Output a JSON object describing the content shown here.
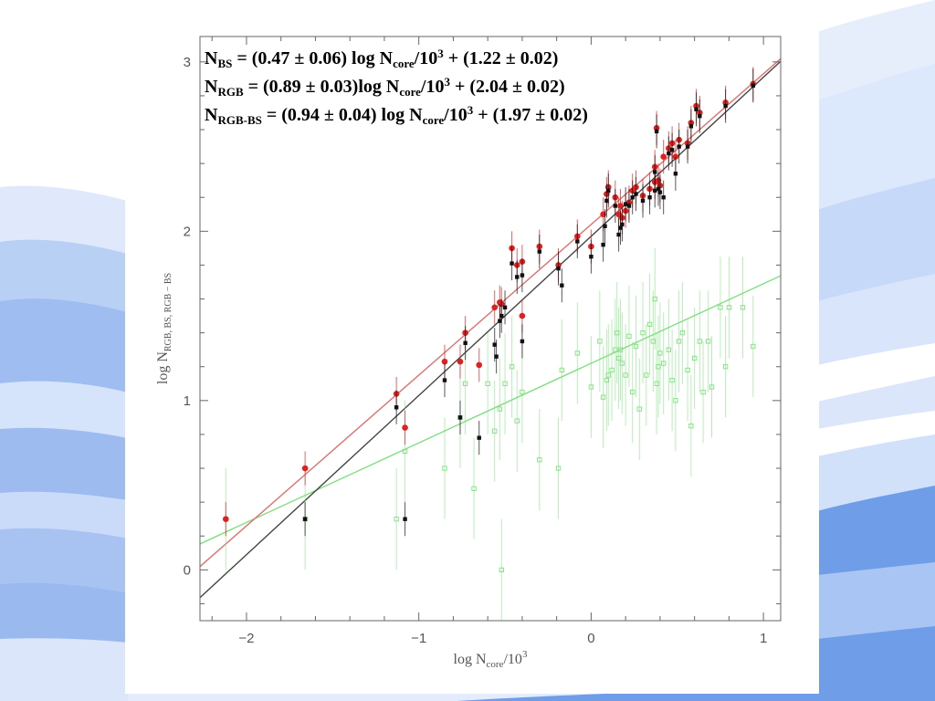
{
  "chart_data": {
    "type": "scatter",
    "xlabel": {
      "base": "log N",
      "sub": "core",
      "tail": "/10",
      "sup": "3"
    },
    "ylabel": {
      "base": "log N",
      "sub": "RGB, BS, RGB − BS"
    },
    "xlim": [
      -2.27,
      1.1
    ],
    "ylim": [
      -0.3,
      3.15
    ],
    "xticks": [
      -2,
      -1,
      0,
      1
    ],
    "xtick_labels": [
      "−2",
      "−1",
      "0",
      "1"
    ],
    "yticks": [
      0,
      1,
      2,
      3
    ],
    "ytick_labels": [
      "0",
      "1",
      "2",
      "3"
    ],
    "equations": [
      {
        "lhs": "N",
        "sub": "BS",
        "a": " = (0.47 ± 0.06) log N",
        "sub2": "core",
        "b": "/10",
        "sup": "3",
        "c": " + (1.22 ± 0.02)"
      },
      {
        "lhs": "N",
        "sub": "RGB",
        "a": " = (0.89 ± 0.03)log N",
        "sub2": "core",
        "b": "/10",
        "sup": "3",
        "c": " + (2.04 ± 0.02)"
      },
      {
        "lhs": "N",
        "sub": "RGB-BS",
        "a": " = (0.94 ± 0.04) log N",
        "sub2": "core",
        "b": "/10",
        "sup": "3",
        "c": " + (1.97 ± 0.02)"
      }
    ],
    "fits": [
      {
        "slope": 0.47,
        "intercept": 1.22,
        "color": "#7fe07f"
      },
      {
        "slope": 0.89,
        "intercept": 2.04,
        "color": "#e07070"
      },
      {
        "slope": 0.94,
        "intercept": 1.97,
        "color": "#444444"
      }
    ],
    "series": [
      {
        "color": "#e02020",
        "points": [
          [
            -2.12,
            0.3
          ],
          [
            -1.66,
            0.6
          ],
          [
            -1.13,
            1.04
          ],
          [
            -1.08,
            0.84
          ],
          [
            -0.85,
            1.23
          ],
          [
            -0.76,
            1.23
          ],
          [
            -0.73,
            1.4
          ],
          [
            -0.65,
            1.21
          ],
          [
            -0.56,
            1.55
          ],
          [
            -0.53,
            1.58
          ],
          [
            -0.52,
            1.57
          ],
          [
            -0.46,
            1.9
          ],
          [
            -0.43,
            1.8
          ],
          [
            -0.4,
            1.82
          ],
          [
            -0.4,
            1.5
          ],
          [
            -0.3,
            1.91
          ],
          [
            -0.19,
            1.8
          ],
          [
            -0.08,
            1.97
          ],
          [
            0.0,
            1.91
          ],
          [
            0.07,
            2.1
          ],
          [
            0.09,
            2.22
          ],
          [
            0.1,
            2.26
          ],
          [
            0.14,
            2.2
          ],
          [
            0.16,
            2.1
          ],
          [
            0.17,
            2.15
          ],
          [
            0.18,
            2.08
          ],
          [
            0.2,
            2.12
          ],
          [
            0.22,
            2.17
          ],
          [
            0.24,
            2.24
          ],
          [
            0.26,
            2.26
          ],
          [
            0.3,
            2.21
          ],
          [
            0.34,
            2.25
          ],
          [
            0.37,
            2.38
          ],
          [
            0.37,
            2.29
          ],
          [
            0.38,
            2.61
          ],
          [
            0.39,
            2.3
          ],
          [
            0.4,
            2.27
          ],
          [
            0.42,
            2.44
          ],
          [
            0.45,
            2.49
          ],
          [
            0.47,
            2.52
          ],
          [
            0.49,
            2.44
          ],
          [
            0.51,
            2.54
          ],
          [
            0.56,
            2.52
          ],
          [
            0.58,
            2.64
          ],
          [
            0.61,
            2.74
          ],
          [
            0.63,
            2.7
          ],
          [
            0.78,
            2.76
          ],
          [
            0.94,
            2.87
          ]
        ]
      },
      {
        "color": "#111111",
        "points": [
          [
            -1.66,
            0.3
          ],
          [
            -1.13,
            0.96
          ],
          [
            -1.08,
            0.3
          ],
          [
            -0.85,
            1.12
          ],
          [
            -0.76,
            0.9
          ],
          [
            -0.73,
            1.34
          ],
          [
            -0.65,
            0.78
          ],
          [
            -0.56,
            1.33
          ],
          [
            -0.55,
            1.26
          ],
          [
            -0.53,
            1.47
          ],
          [
            -0.52,
            1.5
          ],
          [
            -0.5,
            1.55
          ],
          [
            -0.46,
            1.81
          ],
          [
            -0.43,
            1.73
          ],
          [
            -0.4,
            1.74
          ],
          [
            -0.4,
            1.35
          ],
          [
            -0.3,
            1.88
          ],
          [
            -0.19,
            1.78
          ],
          [
            -0.17,
            1.68
          ],
          [
            -0.08,
            1.94
          ],
          [
            0.0,
            1.85
          ],
          [
            0.07,
            1.92
          ],
          [
            0.08,
            2.03
          ],
          [
            0.09,
            2.18
          ],
          [
            0.1,
            2.24
          ],
          [
            0.14,
            2.15
          ],
          [
            0.16,
            1.98
          ],
          [
            0.17,
            2.02
          ],
          [
            0.18,
            2.04
          ],
          [
            0.2,
            2.16
          ],
          [
            0.22,
            2.15
          ],
          [
            0.24,
            2.2
          ],
          [
            0.26,
            2.22
          ],
          [
            0.3,
            2.18
          ],
          [
            0.34,
            2.2
          ],
          [
            0.37,
            2.35
          ],
          [
            0.37,
            2.24
          ],
          [
            0.38,
            2.59
          ],
          [
            0.39,
            2.25
          ],
          [
            0.4,
            2.23
          ],
          [
            0.42,
            2.2
          ],
          [
            0.45,
            2.46
          ],
          [
            0.47,
            2.48
          ],
          [
            0.49,
            2.34
          ],
          [
            0.51,
            2.5
          ],
          [
            0.56,
            2.5
          ],
          [
            0.58,
            2.62
          ],
          [
            0.61,
            2.72
          ],
          [
            0.63,
            2.68
          ],
          [
            0.78,
            2.74
          ],
          [
            0.94,
            2.86
          ]
        ]
      },
      {
        "color": "#7fe07f",
        "points": [
          [
            -2.12,
            0.3
          ],
          [
            -1.66,
            0.3
          ],
          [
            -1.13,
            0.3
          ],
          [
            -1.08,
            0.7
          ],
          [
            -0.85,
            0.6
          ],
          [
            -0.76,
            0.9
          ],
          [
            -0.73,
            1.1
          ],
          [
            -0.68,
            0.48
          ],
          [
            -0.6,
            1.1
          ],
          [
            -0.56,
            0.82
          ],
          [
            -0.53,
            0.95
          ],
          [
            -0.52,
            0.0
          ],
          [
            -0.5,
            1.1
          ],
          [
            -0.46,
            1.2
          ],
          [
            -0.43,
            0.88
          ],
          [
            -0.4,
            1.05
          ],
          [
            -0.3,
            0.65
          ],
          [
            -0.19,
            0.6
          ],
          [
            -0.17,
            1.18
          ],
          [
            -0.08,
            1.28
          ],
          [
            0.0,
            1.08
          ],
          [
            0.05,
            1.35
          ],
          [
            0.07,
            1.02
          ],
          [
            0.09,
            1.12
          ],
          [
            0.1,
            1.15
          ],
          [
            0.12,
            1.18
          ],
          [
            0.14,
            1.3
          ],
          [
            0.15,
            1.4
          ],
          [
            0.16,
            1.25
          ],
          [
            0.17,
            1.3
          ],
          [
            0.18,
            1.22
          ],
          [
            0.2,
            1.15
          ],
          [
            0.22,
            1.38
          ],
          [
            0.24,
            1.05
          ],
          [
            0.26,
            1.32
          ],
          [
            0.28,
            0.95
          ],
          [
            0.3,
            1.4
          ],
          [
            0.32,
            1.15
          ],
          [
            0.34,
            1.45
          ],
          [
            0.36,
            1.35
          ],
          [
            0.37,
            1.6
          ],
          [
            0.38,
            1.1
          ],
          [
            0.39,
            1.2
          ],
          [
            0.4,
            1.28
          ],
          [
            0.42,
            1.22
          ],
          [
            0.45,
            1.3
          ],
          [
            0.47,
            1.12
          ],
          [
            0.49,
            1.0
          ],
          [
            0.51,
            1.35
          ],
          [
            0.53,
            1.4
          ],
          [
            0.56,
            1.18
          ],
          [
            0.58,
            0.85
          ],
          [
            0.6,
            1.25
          ],
          [
            0.63,
            1.35
          ],
          [
            0.65,
            1.05
          ],
          [
            0.68,
            1.35
          ],
          [
            0.7,
            1.08
          ],
          [
            0.75,
            1.55
          ],
          [
            0.78,
            1.2
          ],
          [
            0.8,
            1.55
          ],
          [
            0.88,
            1.55
          ],
          [
            0.94,
            1.32
          ]
        ]
      }
    ]
  }
}
